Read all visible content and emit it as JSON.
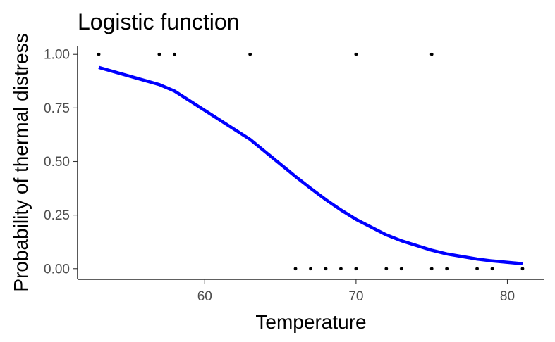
{
  "chart_data": {
    "type": "scatter",
    "title": "Logistic function",
    "xlabel": "Temperature",
    "ylabel": "Probability of thermal distress",
    "xlim": [
      51.6,
      82.4
    ],
    "ylim": [
      -0.05,
      1.05
    ],
    "x_ticks": [
      60,
      70,
      80
    ],
    "y_ticks": [
      0.0,
      0.25,
      0.5,
      0.75,
      1.0
    ],
    "x_tick_labels": [
      "60",
      "70",
      "80"
    ],
    "y_tick_labels": [
      "0.00",
      "0.25",
      "0.50",
      "0.75",
      "1.00"
    ],
    "grid": false,
    "series": [
      {
        "kind": "points",
        "x": [
          53,
          57,
          58,
          63,
          70,
          75,
          66,
          67,
          68,
          69,
          70,
          72,
          73,
          75,
          76,
          78,
          79,
          81
        ],
        "y": [
          1,
          1,
          1,
          1,
          1,
          1,
          0,
          0,
          0,
          0,
          0,
          0,
          0,
          0,
          0,
          0,
          0,
          0
        ],
        "color": "#000000"
      },
      {
        "kind": "line",
        "x": [
          53,
          57,
          58,
          63,
          66,
          67,
          68,
          69,
          70,
          72,
          73,
          75,
          76,
          78,
          79,
          81
        ],
        "y": [
          0.939,
          0.859,
          0.829,
          0.603,
          0.43,
          0.375,
          0.322,
          0.274,
          0.23,
          0.158,
          0.13,
          0.086,
          0.069,
          0.045,
          0.036,
          0.023
        ],
        "color": "#0000ff"
      }
    ]
  }
}
